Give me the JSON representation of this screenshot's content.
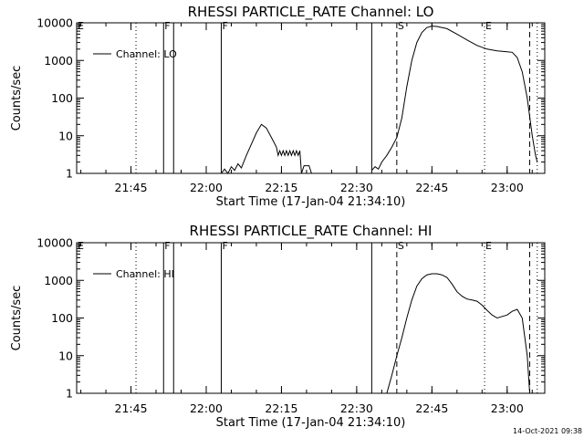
{
  "footer_timestamp": "14-Oct-2021 09:38",
  "chart_data": [
    {
      "type": "line",
      "title": "RHESSI PARTICLE_RATE Channel: LO",
      "xlabel": "Start Time (17-Jan-04 21:34:10)",
      "ylabel": "Counts/sec",
      "y_scale": "log",
      "ylim": [
        1,
        10000
      ],
      "y_ticks": [
        "1",
        "10",
        "100",
        "1000",
        "10000"
      ],
      "xlim": [
        "21:34:10",
        "23:07:30"
      ],
      "x_ticks": [
        "21:45",
        "22:00",
        "22:15",
        "22:30",
        "22:45",
        "23:00"
      ],
      "legend": {
        "label": "Channel: LO",
        "placement": "top-left"
      },
      "markers": [
        {
          "time": "21:34:10",
          "label": "E",
          "style": "dotted"
        },
        {
          "time": "21:46:00",
          "label": "",
          "style": "dotted"
        },
        {
          "time": "21:51:30",
          "label": "F",
          "style": "solid"
        },
        {
          "time": "21:53:30",
          "label": "",
          "style": "solid"
        },
        {
          "time": "22:03:00",
          "label": "F",
          "style": "solid"
        },
        {
          "time": "22:33:00",
          "label": "",
          "style": "solid"
        },
        {
          "time": "22:38:00",
          "label": "S",
          "style": "dashed"
        },
        {
          "time": "22:55:30",
          "label": "E",
          "style": "dotted"
        },
        {
          "time": "23:04:30",
          "label": "",
          "style": "dashed"
        },
        {
          "time": "23:06:00",
          "label": "",
          "style": "dotted"
        }
      ],
      "series": [
        {
          "points": [
            [
              "22:03:00",
              1
            ],
            [
              "22:03:40",
              1.3
            ],
            [
              "22:04:20",
              1
            ],
            [
              "22:05:00",
              1.5
            ],
            [
              "22:05:40",
              1.2
            ],
            [
              "22:06:20",
              1.8
            ],
            [
              "22:07:00",
              1.4
            ],
            [
              "22:08:00",
              3
            ],
            [
              "22:09:00",
              6
            ],
            [
              "22:10:00",
              12
            ],
            [
              "22:11:00",
              20
            ],
            [
              "22:12:00",
              16
            ],
            [
              "22:13:00",
              9
            ],
            [
              "22:14:00",
              5
            ],
            [
              "22:14:20",
              3
            ],
            [
              "22:14:40",
              4
            ],
            [
              "22:15:00",
              3
            ],
            [
              "22:15:20",
              4
            ],
            [
              "22:15:40",
              3
            ],
            [
              "22:16:00",
              4
            ],
            [
              "22:16:20",
              3
            ],
            [
              "22:16:40",
              4
            ],
            [
              "22:17:00",
              3
            ],
            [
              "22:17:20",
              4
            ],
            [
              "22:17:40",
              3
            ],
            [
              "22:18:00",
              4
            ],
            [
              "22:18:20",
              3
            ],
            [
              "22:18:40",
              4
            ],
            [
              "22:19:00",
              1
            ],
            [
              "22:19:30",
              1.6
            ],
            [
              "22:20:30",
              1.6
            ],
            [
              "22:21:00",
              1
            ]
          ]
        },
        {
          "points": [
            [
              "22:33:00",
              1.2
            ],
            [
              "22:33:40",
              1.5
            ],
            [
              "22:34:20",
              1.3
            ],
            [
              "22:35:00",
              2
            ],
            [
              "22:36:00",
              3
            ],
            [
              "22:37:00",
              5
            ],
            [
              "22:38:00",
              9
            ],
            [
              "22:39:00",
              30
            ],
            [
              "22:40:00",
              200
            ],
            [
              "22:41:00",
              1000
            ],
            [
              "22:42:00",
              3000
            ],
            [
              "22:43:00",
              5500
            ],
            [
              "22:44:00",
              7500
            ],
            [
              "22:45:00",
              8200
            ],
            [
              "22:46:00",
              8000
            ],
            [
              "22:48:00",
              7000
            ],
            [
              "22:50:00",
              5000
            ],
            [
              "22:52:00",
              3500
            ],
            [
              "22:54:00",
              2500
            ],
            [
              "22:56:00",
              2000
            ],
            [
              "22:58:00",
              1800
            ],
            [
              "23:00:00",
              1700
            ],
            [
              "23:01:00",
              1650
            ],
            [
              "23:02:00",
              1200
            ],
            [
              "23:03:00",
              500
            ],
            [
              "23:04:00",
              100
            ],
            [
              "23:05:00",
              10
            ],
            [
              "23:05:40",
              3
            ],
            [
              "23:06:00",
              2
            ]
          ]
        }
      ]
    },
    {
      "type": "line",
      "title": "RHESSI PARTICLE_RATE Channel: HI",
      "xlabel": "Start Time (17-Jan-04 21:34:10)",
      "ylabel": "Counts/sec",
      "y_scale": "log",
      "ylim": [
        1,
        10000
      ],
      "y_ticks": [
        "1",
        "10",
        "100",
        "1000",
        "10000"
      ],
      "xlim": [
        "21:34:10",
        "23:07:30"
      ],
      "x_ticks": [
        "21:45",
        "22:00",
        "22:15",
        "22:30",
        "22:45",
        "23:00"
      ],
      "legend": {
        "label": "Channel: HI",
        "placement": "top-left"
      },
      "markers": [
        {
          "time": "21:34:10",
          "label": "E",
          "style": "dotted"
        },
        {
          "time": "21:46:00",
          "label": "",
          "style": "dotted"
        },
        {
          "time": "21:51:30",
          "label": "F",
          "style": "solid"
        },
        {
          "time": "21:53:30",
          "label": "",
          "style": "solid"
        },
        {
          "time": "22:03:00",
          "label": "F",
          "style": "solid"
        },
        {
          "time": "22:33:00",
          "label": "",
          "style": "solid"
        },
        {
          "time": "22:38:00",
          "label": "S",
          "style": "dashed"
        },
        {
          "time": "22:55:30",
          "label": "E",
          "style": "dotted"
        },
        {
          "time": "23:04:30",
          "label": "",
          "style": "dashed"
        },
        {
          "time": "23:06:00",
          "label": "",
          "style": "dotted"
        }
      ],
      "series": [
        {
          "points": [
            [
              "22:36:00",
              1
            ],
            [
              "22:37:00",
              3
            ],
            [
              "22:38:00",
              10
            ],
            [
              "22:39:00",
              30
            ],
            [
              "22:40:00",
              100
            ],
            [
              "22:41:00",
              300
            ],
            [
              "22:42:00",
              700
            ],
            [
              "22:43:00",
              1100
            ],
            [
              "22:44:00",
              1400
            ],
            [
              "22:45:00",
              1500
            ],
            [
              "22:46:00",
              1500
            ],
            [
              "22:47:00",
              1400
            ],
            [
              "22:48:00",
              1200
            ],
            [
              "22:49:00",
              800
            ],
            [
              "22:50:00",
              500
            ],
            [
              "22:51:00",
              380
            ],
            [
              "22:52:00",
              320
            ],
            [
              "22:53:00",
              300
            ],
            [
              "22:54:00",
              280
            ],
            [
              "22:55:00",
              220
            ],
            [
              "22:56:00",
              160
            ],
            [
              "22:57:00",
              120
            ],
            [
              "22:58:00",
              100
            ],
            [
              "22:59:00",
              110
            ],
            [
              "23:00:00",
              120
            ],
            [
              "23:01:00",
              150
            ],
            [
              "23:02:00",
              170
            ],
            [
              "23:03:00",
              100
            ],
            [
              "23:04:00",
              10
            ],
            [
              "23:04:30",
              1
            ]
          ]
        }
      ]
    }
  ]
}
